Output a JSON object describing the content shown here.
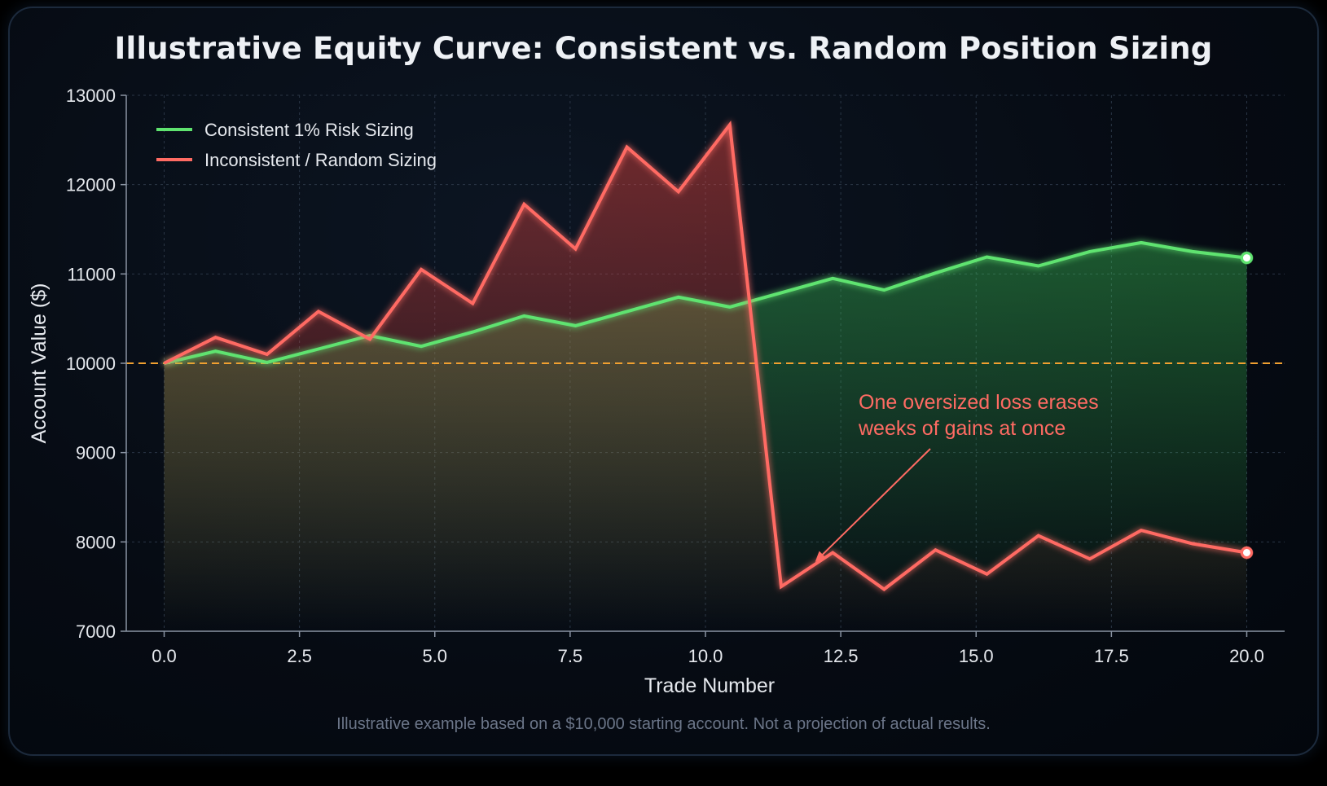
{
  "chart_data": {
    "type": "line",
    "title": "Illustrative Equity Curve: Consistent vs. Random Position Sizing",
    "xlabel": "Trade Number",
    "ylabel": "Account Value ($)",
    "xlim": [
      -0.7,
      20.7
    ],
    "ylim": [
      7000,
      13000
    ],
    "x_ticks": [
      "0.0",
      "2.5",
      "5.0",
      "7.5",
      "10.0",
      "12.5",
      "15.0",
      "17.5",
      "20.0"
    ],
    "x_tick_values": [
      0,
      2.5,
      5,
      7.5,
      10,
      12.5,
      15,
      17.5,
      20
    ],
    "y_ticks": [
      "7000",
      "8000",
      "9000",
      "10000",
      "11000",
      "12000",
      "13000"
    ],
    "y_tick_values": [
      7000,
      8000,
      9000,
      10000,
      11000,
      12000,
      13000
    ],
    "grid": true,
    "legend_position": "top-left",
    "baseline": {
      "y": 10000,
      "color": "#f0a030",
      "style": "dashed"
    },
    "x": [
      0,
      0.95,
      1.9,
      2.85,
      3.8,
      4.75,
      5.7,
      6.65,
      7.6,
      8.55,
      9.5,
      10.45,
      11.4,
      12.35,
      13.3,
      14.25,
      15.2,
      16.15,
      17.1,
      18.05,
      19.0,
      20.0
    ],
    "series": [
      {
        "name": "Consistent 1% Risk Sizing",
        "color": "#5fe36f",
        "values": [
          10000,
          10135,
          10010,
          10160,
          10310,
          10190,
          10350,
          10530,
          10420,
          10580,
          10740,
          10630,
          10790,
          10950,
          10820,
          11010,
          11190,
          11090,
          11250,
          11350,
          11250,
          11180
        ]
      },
      {
        "name": "Inconsistent / Random Sizing",
        "color": "#ff6b63",
        "values": [
          10000,
          10290,
          10100,
          10580,
          10270,
          11050,
          10670,
          11780,
          11280,
          12420,
          11920,
          12670,
          7500,
          7880,
          7470,
          7910,
          7640,
          8070,
          7810,
          8130,
          7980,
          7880
        ]
      }
    ],
    "annotation": {
      "lines": [
        "One oversized loss erases",
        "weeks of gains at once"
      ],
      "color": "#ff6b63",
      "points_to": [
        12.0,
        7760
      ]
    },
    "footnote": "Illustrative example based on a $10,000 starting account. Not a projection of actual results."
  }
}
